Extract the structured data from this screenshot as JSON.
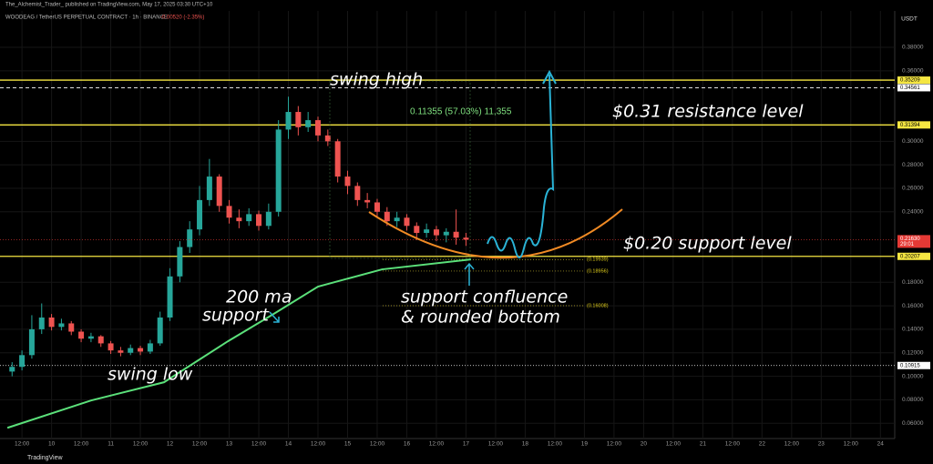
{
  "header": {
    "publisher": "The_Alchemist_Trader_ published on TradingView.com, May 17, 2025 03:30 UTC+10",
    "symbol": "WOODEAG / TetherUS PERPETUAL CONTRACT · 1h · BINANCE",
    "change": "-0.00520 (-2.35%)",
    "footer": "TradingView"
  },
  "chart_data": {
    "type": "candlestick",
    "currency": "USDT",
    "x": [
      8,
      12,
      16,
      20,
      24,
      28,
      32,
      36,
      40,
      44,
      48,
      52,
      56,
      60,
      64,
      68,
      72,
      76,
      80,
      84,
      88,
      92,
      96,
      100,
      104,
      108,
      112,
      116,
      120,
      124,
      128,
      132,
      136,
      140,
      144,
      148,
      152,
      156,
      160,
      164,
      168,
      172,
      176,
      180,
      184,
      188,
      192
    ],
    "open": [
      0.104,
      0.108,
      0.118,
      0.14,
      0.15,
      0.142,
      0.145,
      0.138,
      0.132,
      0.134,
      0.128,
      0.122,
      0.12,
      0.124,
      0.121,
      0.128,
      0.15,
      0.185,
      0.21,
      0.225,
      0.25,
      0.27,
      0.245,
      0.235,
      0.232,
      0.238,
      0.228,
      0.24,
      0.31,
      0.325,
      0.312,
      0.318,
      0.305,
      0.3,
      0.27,
      0.262,
      0.25,
      0.248,
      0.24,
      0.232,
      0.235,
      0.228,
      0.222,
      0.225,
      0.22,
      0.223,
      0.218
    ],
    "high": [
      0.112,
      0.122,
      0.152,
      0.162,
      0.153,
      0.149,
      0.147,
      0.14,
      0.137,
      0.135,
      0.13,
      0.125,
      0.127,
      0.126,
      0.131,
      0.155,
      0.192,
      0.215,
      0.232,
      0.262,
      0.285,
      0.272,
      0.25,
      0.242,
      0.243,
      0.241,
      0.247,
      0.318,
      0.338,
      0.33,
      0.325,
      0.321,
      0.31,
      0.302,
      0.275,
      0.265,
      0.256,
      0.251,
      0.244,
      0.24,
      0.238,
      0.231,
      0.23,
      0.228,
      0.226,
      0.242,
      0.222
    ],
    "low": [
      0.1,
      0.105,
      0.115,
      0.136,
      0.139,
      0.139,
      0.135,
      0.129,
      0.129,
      0.125,
      0.119,
      0.117,
      0.118,
      0.118,
      0.119,
      0.126,
      0.147,
      0.18,
      0.205,
      0.22,
      0.245,
      0.24,
      0.23,
      0.226,
      0.228,
      0.224,
      0.225,
      0.236,
      0.302,
      0.305,
      0.308,
      0.3,
      0.296,
      0.265,
      0.255,
      0.245,
      0.243,
      0.236,
      0.228,
      0.227,
      0.224,
      0.216,
      0.218,
      0.215,
      0.214,
      0.212,
      0.211
    ],
    "close": [
      0.108,
      0.118,
      0.14,
      0.15,
      0.142,
      0.145,
      0.138,
      0.132,
      0.134,
      0.128,
      0.122,
      0.12,
      0.124,
      0.121,
      0.128,
      0.15,
      0.185,
      0.21,
      0.225,
      0.25,
      0.27,
      0.245,
      0.235,
      0.232,
      0.238,
      0.228,
      0.24,
      0.31,
      0.325,
      0.312,
      0.318,
      0.305,
      0.3,
      0.27,
      0.262,
      0.25,
      0.248,
      0.24,
      0.232,
      0.235,
      0.228,
      0.222,
      0.225,
      0.22,
      0.223,
      0.218,
      0.2163
    ],
    "up_color": "#26a69a",
    "down_color": "#ef5350",
    "ma": {
      "x": [
        6.1,
        40,
        69.6,
        95.5,
        114,
        132,
        158,
        194
      ],
      "values": [
        0.0561,
        0.0794,
        0.0949,
        0.1298,
        0.153,
        0.1763,
        0.191,
        0.1995
      ],
      "color": "#5be07a"
    },
    "xlim": [
      3.1,
      365.8
    ],
    "ylim": [
      0.047,
      0.411
    ],
    "grid": true,
    "xticks": [
      {
        "value": 12,
        "label": "12:00"
      },
      {
        "value": 24,
        "label": "10"
      },
      {
        "value": 36,
        "label": "12:00"
      },
      {
        "value": 48,
        "label": "11"
      },
      {
        "value": 60,
        "label": "12:00"
      },
      {
        "value": 72,
        "label": "12"
      },
      {
        "value": 84,
        "label": "12:00"
      },
      {
        "value": 96,
        "label": "13"
      },
      {
        "value": 108,
        "label": "12:00"
      },
      {
        "value": 120,
        "label": "14"
      },
      {
        "value": 132,
        "label": "12:00"
      },
      {
        "value": 144,
        "label": "15"
      },
      {
        "value": 156,
        "label": "12:00"
      },
      {
        "value": 168,
        "label": "16"
      },
      {
        "value": 180,
        "label": "12:00"
      },
      {
        "value": 192,
        "label": "17"
      },
      {
        "value": 204,
        "label": "12:00"
      },
      {
        "value": 216,
        "label": "18"
      },
      {
        "value": 228,
        "label": "12:00"
      },
      {
        "value": 240,
        "label": "19"
      },
      {
        "value": 252,
        "label": "12:00"
      },
      {
        "value": 264,
        "label": "20"
      },
      {
        "value": 276,
        "label": "12:00"
      },
      {
        "value": 288,
        "label": "21"
      },
      {
        "value": 300,
        "label": "12:00"
      },
      {
        "value": 312,
        "label": "22"
      },
      {
        "value": 324,
        "label": "12:00"
      },
      {
        "value": 336,
        "label": "23"
      },
      {
        "value": 348,
        "label": "12:00"
      },
      {
        "value": 360,
        "label": "24"
      }
    ],
    "yticks": [
      {
        "value": 0.38,
        "label": "0.38000"
      },
      {
        "value": 0.36,
        "label": "0.36000"
      },
      {
        "value": 0.3,
        "label": "0.30000"
      },
      {
        "value": 0.28,
        "label": "0.28000"
      },
      {
        "value": 0.26,
        "label": "0.26000"
      },
      {
        "value": 0.24,
        "label": "0.24000"
      },
      {
        "value": 0.18,
        "label": "0.18000"
      },
      {
        "value": 0.16,
        "label": "0.16000"
      },
      {
        "value": 0.14,
        "label": "0.14000"
      },
      {
        "value": 0.12,
        "label": "0.12000"
      },
      {
        "value": 0.1,
        "label": "0.10000"
      },
      {
        "value": 0.08,
        "label": "0.08000"
      },
      {
        "value": 0.06,
        "label": "0.06000"
      }
    ],
    "price_lines": [
      {
        "value": 0.35209,
        "label": "0.35209",
        "color": "#f5e642",
        "style": "solid"
      },
      {
        "value": 0.34561,
        "label": "0.34561",
        "color": "#ffffff",
        "style": "dashed"
      },
      {
        "value": 0.31394,
        "label": "0.31394",
        "color": "#f5e642",
        "style": "solid"
      },
      {
        "value": 0.20207,
        "label": "0.20207",
        "color": "#f5e642",
        "style": "solid"
      },
      {
        "value": 0.10915,
        "label": "0.10915",
        "color": "#ffffff",
        "style": "dotted"
      }
    ],
    "last_price": {
      "value": 0.2163,
      "label": "0.21630",
      "countdown": "29:01",
      "color": "#e53935"
    },
    "level_marks": [
      {
        "value": 0.19939,
        "label": "(0.19939)"
      },
      {
        "value": 0.18956,
        "label": "(0.18956)"
      },
      {
        "value": 0.16008,
        "label": "(0.16008)"
      }
    ],
    "measure": "0.11355 (57.03%) 11,355",
    "annotations": {
      "swing_high": "swing high",
      "resistance": "$0.31 resistance level",
      "support": "$0.20 support level",
      "ma_line1": "200 ma",
      "ma_line2": "support",
      "confluence1": "support confluence",
      "confluence2": "& rounded bottom",
      "swing_low": "swing low"
    }
  }
}
